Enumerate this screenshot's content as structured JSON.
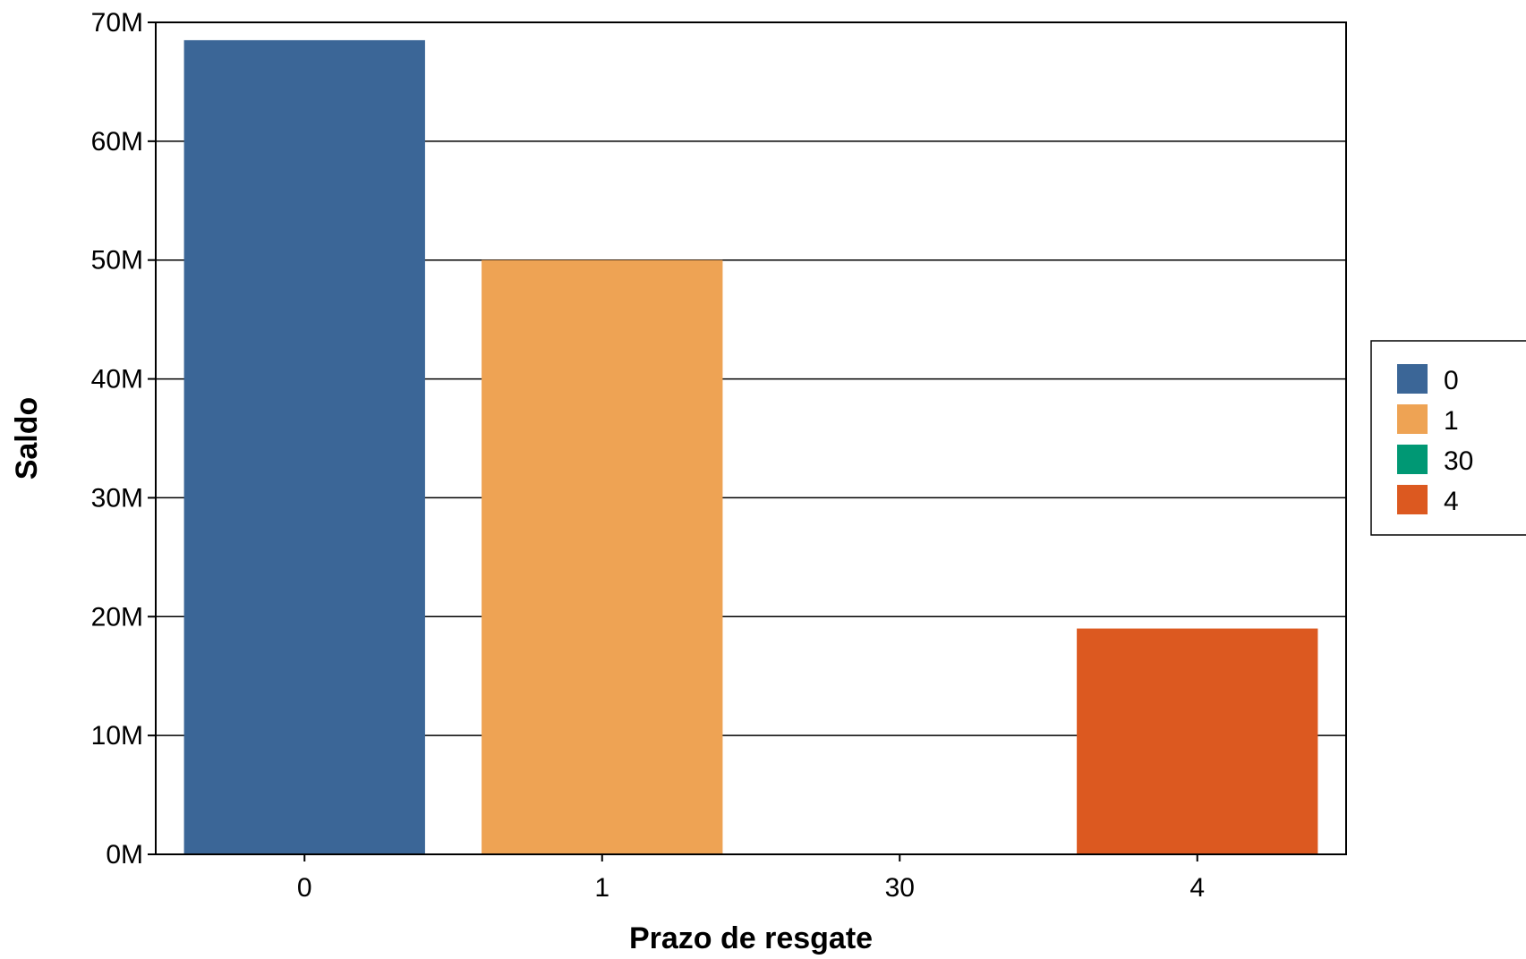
{
  "chart_data": {
    "type": "bar",
    "title": "",
    "xlabel": "Prazo de resgate",
    "ylabel": "Saldo",
    "categories": [
      "0",
      "1",
      "30",
      "4"
    ],
    "values": [
      68500000,
      50000000,
      0,
      19000000
    ],
    "colors": [
      "#3b6697",
      "#eea354",
      "#009874",
      "#dc5920"
    ],
    "ylim": [
      0,
      70000000
    ],
    "yticks": [
      0,
      10000000,
      20000000,
      30000000,
      40000000,
      50000000,
      60000000,
      70000000
    ],
    "ytick_labels": [
      "0M",
      "10M",
      "20M",
      "30M",
      "40M",
      "50M",
      "60M",
      "70M"
    ],
    "grid": "horizontal",
    "legend": {
      "placement": "right",
      "entries": [
        "0",
        "1",
        "30",
        "4"
      ]
    }
  }
}
